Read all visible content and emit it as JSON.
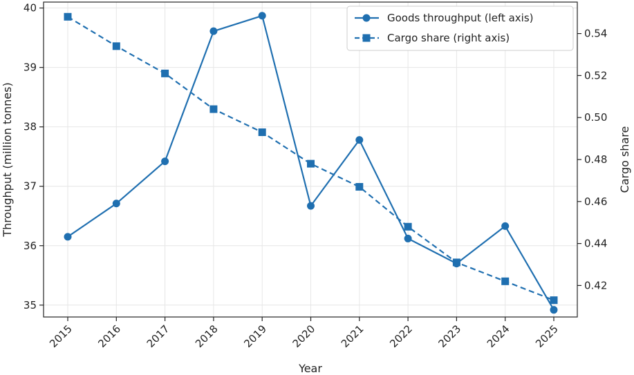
{
  "chart_data": {
    "type": "line",
    "title": "",
    "xlabel": "Year",
    "ylabel_left": "Throughput (million tonnes)",
    "ylabel_right": "Cargo share",
    "categories": [
      "2015",
      "2016",
      "2017",
      "2018",
      "2019",
      "2020",
      "2021",
      "2022",
      "2023",
      "2024",
      "2025"
    ],
    "ylim_left": [
      34.8,
      40.1
    ],
    "ylim_right": [
      0.405,
      0.555
    ],
    "yticks_left": [
      "35",
      "36",
      "37",
      "38",
      "39",
      "40"
    ],
    "yticks_right": [
      "0.42",
      "0.44",
      "0.46",
      "0.48",
      "0.50",
      "0.52",
      "0.54"
    ],
    "grid": true,
    "legend_position": "top-right",
    "series": [
      {
        "name": "Goods throughput (left axis)",
        "axis": "left",
        "style": "solid",
        "marker": "circle",
        "color": "#1f6fb0",
        "values": [
          36.15,
          36.71,
          37.42,
          39.61,
          39.87,
          36.67,
          37.78,
          36.12,
          35.7,
          36.33,
          34.92
        ]
      },
      {
        "name": "Cargo share (right axis)",
        "axis": "right",
        "style": "dashed",
        "marker": "square",
        "color": "#1f6fb0",
        "values": [
          0.548,
          0.534,
          0.521,
          0.504,
          0.493,
          0.478,
          0.467,
          0.448,
          0.431,
          0.422,
          0.413
        ]
      }
    ]
  }
}
